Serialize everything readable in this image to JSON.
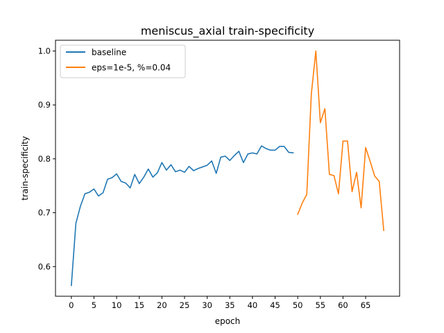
{
  "chart_data": {
    "type": "line",
    "title": "meniscus_axial train-specificity",
    "xlabel": "epoch",
    "ylabel": "train-specificity",
    "xlim": [
      -3.5,
      72.5
    ],
    "ylim": [
      0.545,
      1.02
    ],
    "xticks": [
      0,
      5,
      10,
      15,
      20,
      25,
      30,
      35,
      40,
      45,
      50,
      55,
      60,
      65
    ],
    "yticks": [
      0.6,
      0.7,
      0.8,
      0.9,
      1.0
    ],
    "xtick_labels": [
      "0",
      "5",
      "10",
      "15",
      "20",
      "25",
      "30",
      "35",
      "40",
      "45",
      "50",
      "55",
      "60",
      "65"
    ],
    "ytick_labels": [
      "0.6",
      "0.7",
      "0.8",
      "0.9",
      "1.0"
    ],
    "grid": false,
    "legend_position": "top-left",
    "series": [
      {
        "name": "baseline",
        "color": "#1f77b4",
        "x": [
          0,
          1,
          2,
          3,
          4,
          5,
          6,
          7,
          8,
          9,
          10,
          11,
          12,
          13,
          14,
          15,
          16,
          17,
          18,
          19,
          20,
          21,
          22,
          23,
          24,
          25,
          26,
          27,
          28,
          29,
          30,
          31,
          32,
          33,
          34,
          35,
          36,
          37,
          38,
          39,
          40,
          41,
          42,
          43,
          44,
          45,
          46,
          47,
          48,
          49
        ],
        "y": [
          0.565,
          0.68,
          0.712,
          0.735,
          0.738,
          0.744,
          0.731,
          0.737,
          0.762,
          0.765,
          0.772,
          0.758,
          0.755,
          0.746,
          0.771,
          0.754,
          0.766,
          0.781,
          0.766,
          0.774,
          0.793,
          0.779,
          0.789,
          0.776,
          0.779,
          0.775,
          0.786,
          0.778,
          0.782,
          0.785,
          0.788,
          0.796,
          0.773,
          0.803,
          0.805,
          0.797,
          0.806,
          0.814,
          0.793,
          0.809,
          0.811,
          0.809,
          0.824,
          0.819,
          0.816,
          0.816,
          0.823,
          0.823,
          0.812,
          0.811
        ]
      },
      {
        "name": "eps=1e-5, %=0.04",
        "color": "#ff7f0e",
        "x": [
          50,
          51,
          52,
          53,
          54,
          55,
          56,
          57,
          58,
          59,
          60,
          61,
          62,
          63,
          64,
          65,
          66,
          67,
          68,
          69
        ],
        "y": [
          0.697,
          0.718,
          0.734,
          0.92,
          1.0,
          0.867,
          0.893,
          0.771,
          0.769,
          0.735,
          0.833,
          0.833,
          0.739,
          0.775,
          0.709,
          0.821,
          0.795,
          0.768,
          0.758,
          0.667
        ]
      }
    ]
  }
}
